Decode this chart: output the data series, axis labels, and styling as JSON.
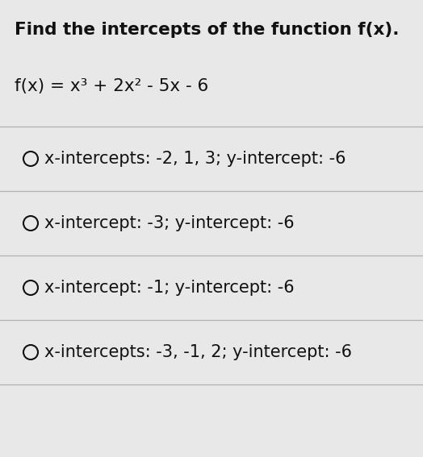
{
  "title": "Find the intercepts of the function f(x).",
  "function_line1": "f(x) = x",
  "function_label": "f(x) = x³ + 2x² - 5x - 6",
  "options": [
    "x-intercepts: -2, 1, 3; y-intercept: -6",
    "x-intercept: -3; y-intercept: -6",
    "x-intercept: -1; y-intercept: -6",
    "x-intercepts: -3, -1, 2; y-intercept: -6"
  ],
  "background_color": "#e8e8e8",
  "title_fontsize": 15.5,
  "function_fontsize": 15.5,
  "option_fontsize": 15,
  "title_color": "#111111",
  "option_color": "#111111",
  "circle_color": "#111111",
  "divider_color": "#b0b0b0",
  "divider_lw": 0.9
}
